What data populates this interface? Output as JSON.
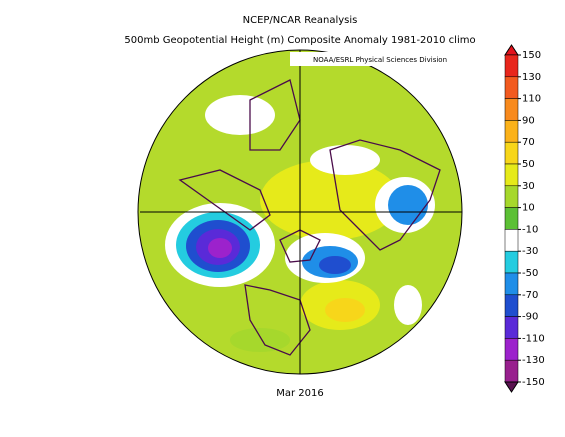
{
  "header": {
    "title": "NCEP/NCAR Reanalysis",
    "subtitle": "500mb Geopotential Height (m) Composite Anomaly 1981-2010 climo",
    "credit": "NOAA/ESRL Physical Sciences Division"
  },
  "map": {
    "date": "Mar 2016"
  },
  "colorbar": {
    "levels": [
      150,
      130,
      110,
      90,
      70,
      50,
      30,
      10,
      -10,
      -30,
      -50,
      -70,
      -90,
      -110,
      -130,
      -150
    ],
    "colors": [
      "#e3121c",
      "#e8261c",
      "#f25a1f",
      "#f88a1d",
      "#fbb21a",
      "#f7d61a",
      "#e6ea1a",
      "#a6d82c",
      "#5cc035",
      "#ffffff",
      "#24cce0",
      "#1f8ee8",
      "#1f4ecf",
      "#5a2ad8",
      "#9c22cc",
      "#98208e",
      "#5a1250"
    ]
  }
}
